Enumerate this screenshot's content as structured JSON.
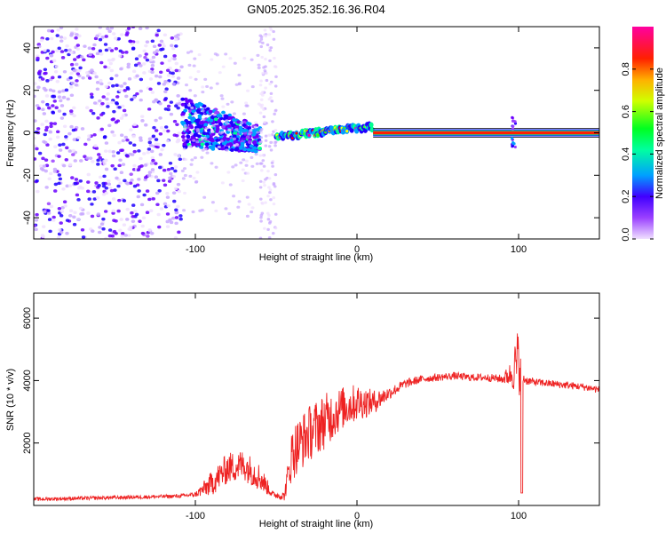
{
  "title": "GN05.2025.352.16.36.R04",
  "chart_data": [
    {
      "type": "heatmap",
      "xlabel": "Height of straight line (km)",
      "ylabel": "Frequency (Hz)",
      "xlim": [
        -200,
        150
      ],
      "ylim": [
        -50,
        50
      ],
      "x_ticks": [
        -100,
        0,
        100
      ],
      "y_ticks": [
        -40,
        -20,
        0,
        20,
        40
      ],
      "colorbar": {
        "label": "Normalized spectral amplitude",
        "range": [
          0.0,
          1.0
        ],
        "ticks": [
          "0.0",
          "0.2",
          "0.4",
          "0.6",
          "0.8"
        ],
        "colors": [
          "#f0e0ff",
          "#7a00ff",
          "#0000ff",
          "#00b8ff",
          "#00ff40",
          "#ffff00",
          "#ff8000",
          "#ff0000",
          "#ff00a0"
        ]
      },
      "regions": [
        {
          "x_range": [
            -200,
            -108
          ],
          "freq_halfwidth": 50,
          "amplitude": 0.15,
          "pattern": "scattered"
        },
        {
          "x_range": [
            -108,
            -60
          ],
          "freq_halfwidth": 12,
          "amplitude": 0.3,
          "pattern": "band"
        },
        {
          "x_range": [
            -60,
            -50
          ],
          "freq_halfwidth": 50,
          "amplitude": 0.05,
          "pattern": "faint"
        },
        {
          "x_range": [
            -50,
            10
          ],
          "freq_halfwidth": 3,
          "amplitude": 0.6,
          "pattern": "line"
        },
        {
          "x_range": [
            10,
            150
          ],
          "freq_halfwidth": 1.5,
          "amplitude": 0.95,
          "pattern": "steady-line"
        }
      ],
      "spike_at": 97
    },
    {
      "type": "line",
      "xlabel": "Height of straight line (km)",
      "ylabel": "SNR (10 * v/v)",
      "xlim": [
        -200,
        150
      ],
      "ylim": [
        0,
        6800
      ],
      "x_ticks": [
        -100,
        0,
        100
      ],
      "y_ticks": [
        2000,
        4000,
        6000
      ],
      "series": [
        {
          "color": "#ee2222",
          "x": [
            -200,
            -150,
            -110,
            -100,
            -90,
            -80,
            -70,
            -60,
            -52,
            -45,
            -40,
            -30,
            -20,
            -10,
            0,
            10,
            20,
            30,
            40,
            50,
            60,
            70,
            80,
            90,
            95,
            100,
            102,
            105,
            110,
            120,
            130,
            140,
            150
          ],
          "values": [
            200,
            250,
            300,
            350,
            700,
            1200,
            1300,
            900,
            350,
            300,
            1700,
            2300,
            2700,
            3100,
            3300,
            3300,
            3600,
            3900,
            4050,
            4100,
            4150,
            4100,
            4100,
            4050,
            4200,
            4600,
            4100,
            4000,
            3950,
            3900,
            3850,
            3800,
            3700
          ],
          "noise": [
            60,
            60,
            60,
            80,
            400,
            500,
            500,
            450,
            100,
            150,
            900,
            900,
            900,
            700,
            600,
            400,
            200,
            150,
            120,
            120,
            120,
            120,
            120,
            140,
            400,
            1200,
            200,
            140,
            120,
            120,
            120,
            120,
            120
          ]
        }
      ]
    }
  ]
}
